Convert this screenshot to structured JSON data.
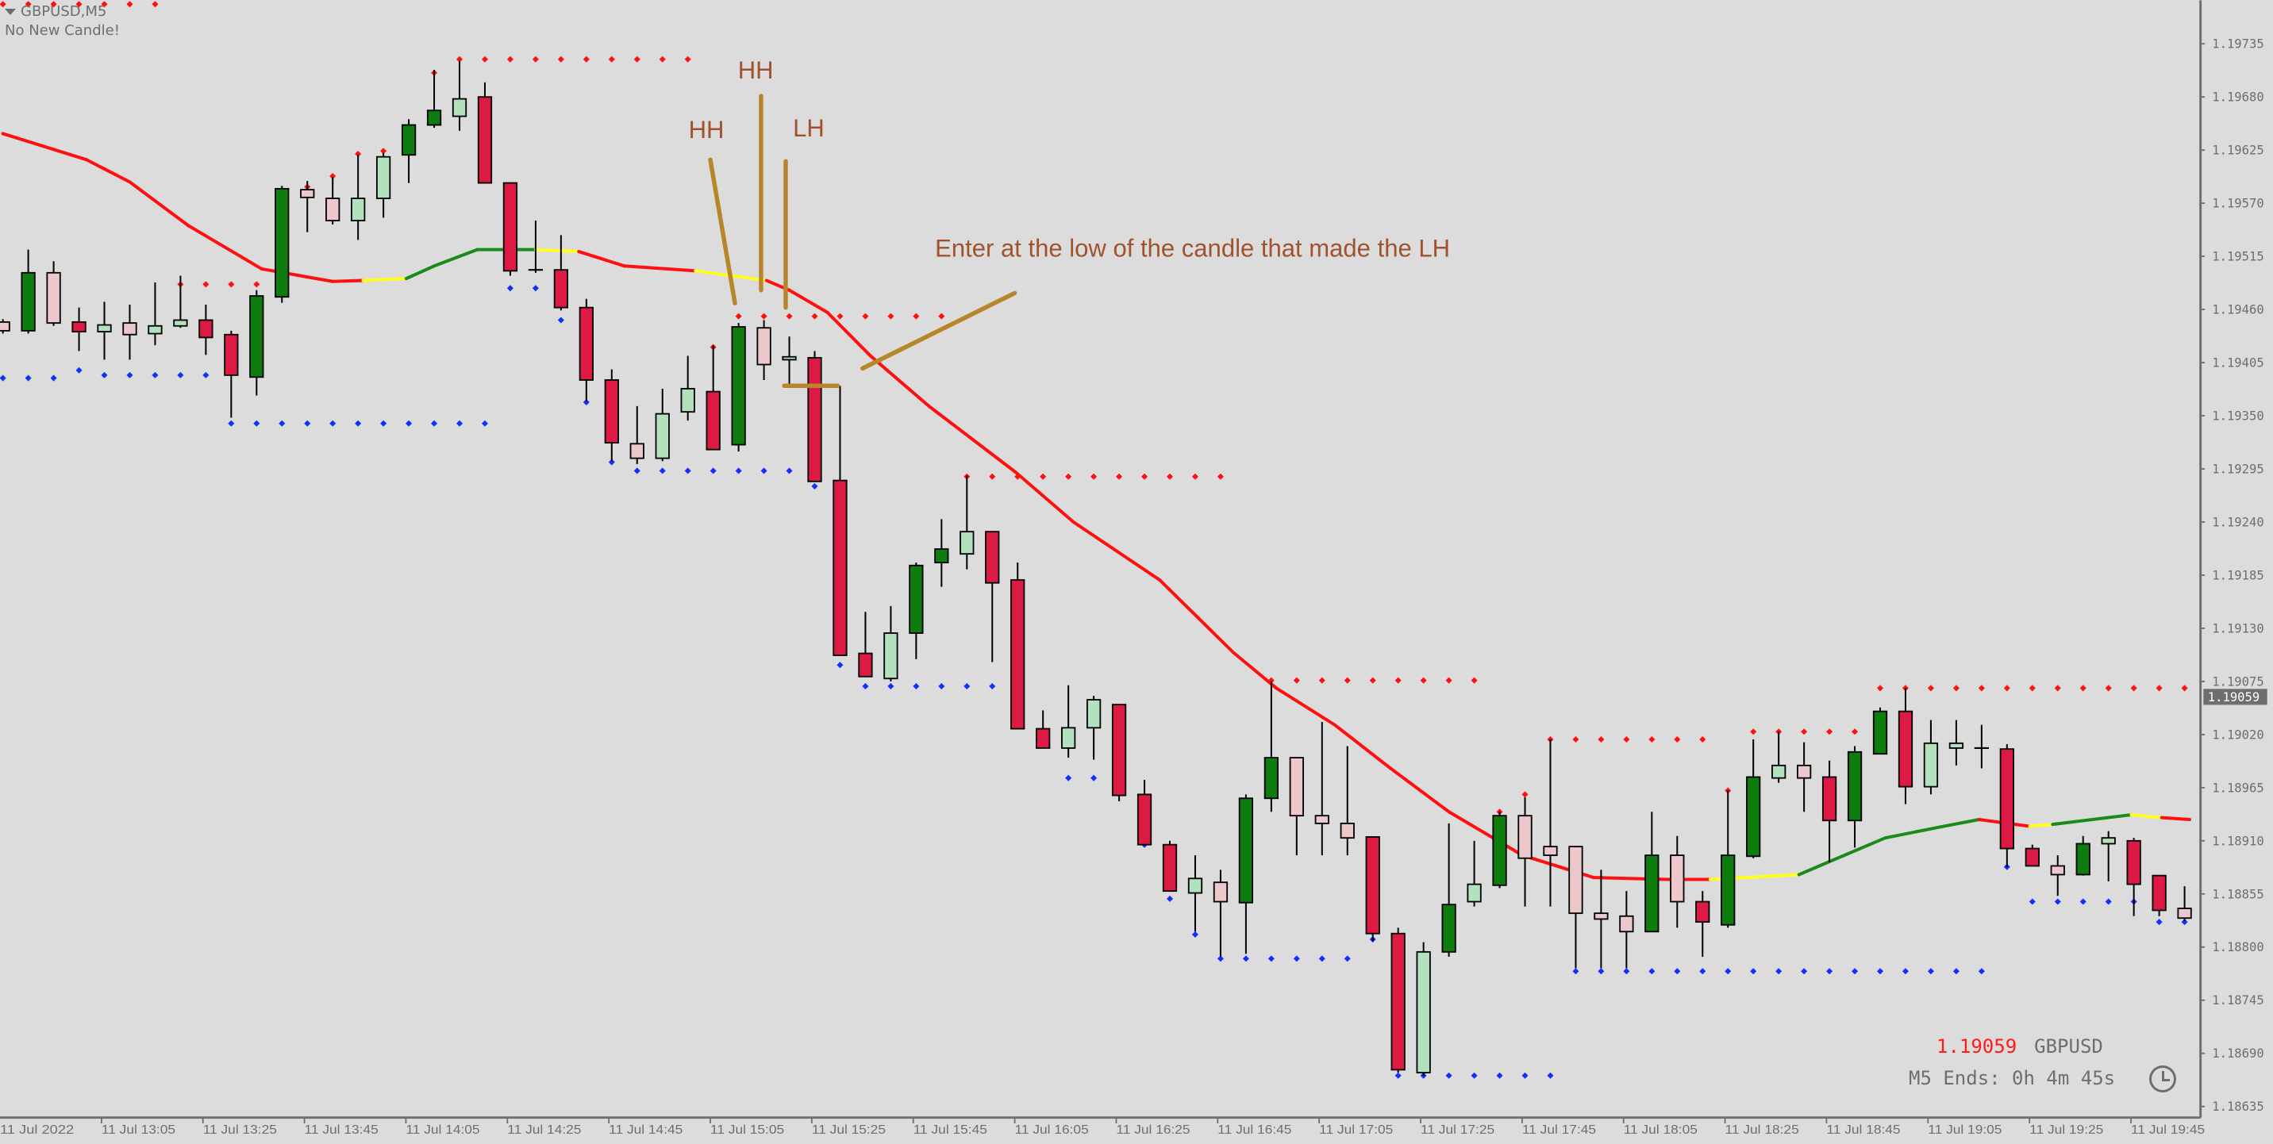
{
  "header": {
    "symbol_title": "GBPUSD,M5",
    "status_text": "No New Candle!"
  },
  "info_panel": {
    "price": "1.19059",
    "symbol": "GBPUSD",
    "timer": "M5 Ends: 0h 4m 45s",
    "clock_icon": "clock-icon"
  },
  "colors": {
    "background": "#dcdcdc",
    "axis": "#6e6e6e",
    "bull": "#0e7c0e",
    "bull_light": "#b2e2bd",
    "bear": "#dc1a44",
    "bear_light": "#ecc8cc",
    "resistance_dots": "#ff1010",
    "support_dots": "#1030ff",
    "ma_red": "#ff1010",
    "ma_green": "#1a8a1a",
    "ma_yellow": "#ffff20",
    "annotation_text": "#a0522d",
    "annotation_line": "#b8862a"
  },
  "annotations": {
    "hh_1": "HH",
    "hh_2": "HH",
    "lh": "LH",
    "entry_note": "Enter at the low of the candle that made the LH"
  },
  "chart_data": {
    "type": "candlestick",
    "symbol": "GBPUSD",
    "timeframe": "M5",
    "ylim": [
      1.18635,
      1.1978
    ],
    "current_price": 1.19059,
    "y_ticks": [
      "1.19735",
      "1.19680",
      "1.19625",
      "1.19570",
      "1.19515",
      "1.19460",
      "1.19405",
      "1.19350",
      "1.19295",
      "1.19240",
      "1.19185",
      "1.19130",
      "1.19075",
      "1.19020",
      "1.18965",
      "1.18910",
      "1.18855",
      "1.18800",
      "1.18745",
      "1.18690",
      "1.18635"
    ],
    "x_ticks": [
      {
        "i": 0,
        "label": "11 Jul 2022"
      },
      {
        "i": 4,
        "label": "11 Jul 13:05"
      },
      {
        "i": 8,
        "label": "11 Jul 13:25"
      },
      {
        "i": 12,
        "label": "11 Jul 13:45"
      },
      {
        "i": 16,
        "label": "11 Jul 14:05"
      },
      {
        "i": 20,
        "label": "11 Jul 14:25"
      },
      {
        "i": 24,
        "label": "11 Jul 14:45"
      },
      {
        "i": 28,
        "label": "11 Jul 15:05"
      },
      {
        "i": 32,
        "label": "11 Jul 15:25"
      },
      {
        "i": 36,
        "label": "11 Jul 15:45"
      },
      {
        "i": 40,
        "label": "11 Jul 16:05"
      },
      {
        "i": 44,
        "label": "11 Jul 16:25"
      },
      {
        "i": 48,
        "label": "11 Jul 16:45"
      },
      {
        "i": 52,
        "label": "11 Jul 17:05"
      },
      {
        "i": 56,
        "label": "11 Jul 17:25"
      },
      {
        "i": 60,
        "label": "11 Jul 17:45"
      },
      {
        "i": 64,
        "label": "11 Jul 18:05"
      },
      {
        "i": 68,
        "label": "11 Jul 18:25"
      },
      {
        "i": 72,
        "label": "11 Jul 18:45"
      },
      {
        "i": 76,
        "label": "11 Jul 19:05"
      },
      {
        "i": 80,
        "label": "11 Jul 19:25"
      },
      {
        "i": 84,
        "label": "11 Jul 19:45"
      }
    ],
    "candle_fields": [
      "open",
      "high",
      "low",
      "close",
      "style"
    ],
    "candle_styles": {
      "G": "bull",
      "g": "bull_light",
      "R": "bear",
      "r": "bear_light",
      "d": "doji"
    },
    "candles": [
      [
        1.19447,
        1.1945,
        1.19435,
        1.19438,
        "r"
      ],
      [
        1.19438,
        1.19522,
        1.19435,
        1.19498,
        "G"
      ],
      [
        1.19498,
        1.1951,
        1.19443,
        1.19446,
        "r"
      ],
      [
        1.19447,
        1.19462,
        1.19417,
        1.19437,
        "R"
      ],
      [
        1.19437,
        1.19468,
        1.19408,
        1.19444,
        "g"
      ],
      [
        1.19446,
        1.19465,
        1.19408,
        1.19434,
        "r"
      ],
      [
        1.19435,
        1.19488,
        1.19423,
        1.19443,
        "g"
      ],
      [
        1.19443,
        1.19495,
        1.19441,
        1.19449,
        "g"
      ],
      [
        1.19449,
        1.19465,
        1.19413,
        1.19431,
        "R"
      ],
      [
        1.19434,
        1.19438,
        1.19348,
        1.19392,
        "R"
      ],
      [
        1.1939,
        1.1948,
        1.19371,
        1.19474,
        "G"
      ],
      [
        1.19473,
        1.19588,
        1.19467,
        1.19585,
        "G"
      ],
      [
        1.19584,
        1.19593,
        1.1954,
        1.19576,
        "r"
      ],
      [
        1.19575,
        1.19597,
        1.19548,
        1.19552,
        "r"
      ],
      [
        1.19552,
        1.1962,
        1.19532,
        1.19575,
        "g"
      ],
      [
        1.19575,
        1.19622,
        1.19555,
        1.19618,
        "g"
      ],
      [
        1.1962,
        1.19657,
        1.19591,
        1.19651,
        "G"
      ],
      [
        1.19651,
        1.19708,
        1.19648,
        1.19666,
        "G"
      ],
      [
        1.1966,
        1.19717,
        1.19645,
        1.19678,
        "g"
      ],
      [
        1.1968,
        1.19695,
        1.19591,
        1.19591,
        "R"
      ],
      [
        1.19591,
        1.19591,
        1.19495,
        1.195,
        "R"
      ],
      [
        1.19501,
        1.19552,
        1.19498,
        1.195,
        "d"
      ],
      [
        1.19501,
        1.19537,
        1.19459,
        1.19462,
        "R"
      ],
      [
        1.19462,
        1.19471,
        1.19365,
        1.19387,
        "R"
      ],
      [
        1.19387,
        1.19398,
        1.19303,
        1.19322,
        "R"
      ],
      [
        1.19321,
        1.1936,
        1.193,
        1.19306,
        "r"
      ],
      [
        1.19306,
        1.19378,
        1.19303,
        1.19352,
        "g"
      ],
      [
        1.19354,
        1.19412,
        1.19345,
        1.19378,
        "g"
      ],
      [
        1.19375,
        1.19423,
        1.19315,
        1.19315,
        "R"
      ],
      [
        1.1932,
        1.19446,
        1.19313,
        1.19442,
        "G"
      ],
      [
        1.19441,
        1.19449,
        1.19387,
        1.19403,
        "r"
      ],
      [
        1.19408,
        1.19432,
        1.19382,
        1.19411,
        "g"
      ],
      [
        1.1941,
        1.19417,
        1.19282,
        1.19282,
        "R"
      ],
      [
        1.19283,
        1.19381,
        1.19102,
        1.19102,
        "R"
      ],
      [
        1.19104,
        1.19147,
        1.1908,
        1.1908,
        "R"
      ],
      [
        1.19078,
        1.19153,
        1.19075,
        1.19125,
        "g"
      ],
      [
        1.19125,
        1.19198,
        1.19098,
        1.19195,
        "G"
      ],
      [
        1.19198,
        1.19243,
        1.19173,
        1.19212,
        "G"
      ],
      [
        1.19207,
        1.19288,
        1.19191,
        1.1923,
        "g"
      ],
      [
        1.1923,
        1.1923,
        1.19095,
        1.19177,
        "R"
      ],
      [
        1.1918,
        1.19198,
        1.19026,
        1.19026,
        "R"
      ],
      [
        1.19026,
        1.19045,
        1.19006,
        1.19006,
        "R"
      ],
      [
        1.19006,
        1.19071,
        1.18996,
        1.19027,
        "g"
      ],
      [
        1.19027,
        1.1906,
        1.18994,
        1.19056,
        "g"
      ],
      [
        1.19051,
        1.19051,
        1.18951,
        1.18957,
        "R"
      ],
      [
        1.18958,
        1.18973,
        1.18906,
        1.18906,
        "R"
      ],
      [
        1.18906,
        1.1891,
        1.18858,
        1.18858,
        "R"
      ],
      [
        1.18856,
        1.18895,
        1.18816,
        1.18871,
        "g"
      ],
      [
        1.18867,
        1.1888,
        1.1879,
        1.18847,
        "r"
      ],
      [
        1.18846,
        1.18958,
        1.18793,
        1.18954,
        "G"
      ],
      [
        1.18954,
        1.19075,
        1.1894,
        1.18996,
        "G"
      ],
      [
        1.18996,
        1.18996,
        1.18895,
        1.18936,
        "r"
      ],
      [
        1.18936,
        1.19033,
        1.18895,
        1.18928,
        "r"
      ],
      [
        1.18928,
        1.19008,
        1.18895,
        1.18913,
        "r"
      ],
      [
        1.18914,
        1.18914,
        1.18806,
        1.18814,
        "R"
      ],
      [
        1.18814,
        1.1882,
        1.1867,
        1.18673,
        "R"
      ],
      [
        1.1867,
        1.18805,
        1.18667,
        1.18795,
        "g"
      ],
      [
        1.18795,
        1.18928,
        1.1879,
        1.18844,
        "G"
      ],
      [
        1.18847,
        1.1891,
        1.18842,
        1.18865,
        "g"
      ],
      [
        1.18864,
        1.1894,
        1.18861,
        1.18936,
        "G"
      ],
      [
        1.18936,
        1.18955,
        1.18842,
        1.18892,
        "r"
      ],
      [
        1.18904,
        1.19015,
        1.18842,
        1.18895,
        "r"
      ],
      [
        1.18904,
        1.18904,
        1.18778,
        1.18835,
        "r"
      ],
      [
        1.18835,
        1.1888,
        1.18778,
        1.18829,
        "r"
      ],
      [
        1.18832,
        1.18858,
        1.18778,
        1.18816,
        "r"
      ],
      [
        1.18816,
        1.1894,
        1.18816,
        1.18895,
        "G"
      ],
      [
        1.18895,
        1.18915,
        1.1882,
        1.18847,
        "r"
      ],
      [
        1.18847,
        1.18858,
        1.1879,
        1.18826,
        "R"
      ],
      [
        1.18823,
        1.18962,
        1.1882,
        1.18895,
        "G"
      ],
      [
        1.18894,
        1.19015,
        1.18892,
        1.18976,
        "G"
      ],
      [
        1.18975,
        1.19023,
        1.1897,
        1.18988,
        "g"
      ],
      [
        1.18988,
        1.19012,
        1.1894,
        1.18975,
        "r"
      ],
      [
        1.18976,
        1.18993,
        1.18888,
        1.18931,
        "R"
      ],
      [
        1.18931,
        1.19008,
        1.18903,
        1.19002,
        "G"
      ],
      [
        1.19,
        1.19048,
        1.19,
        1.19044,
        "G"
      ],
      [
        1.19044,
        1.19068,
        1.18948,
        1.18966,
        "R"
      ],
      [
        1.18966,
        1.19035,
        1.18958,
        1.19011,
        "g"
      ],
      [
        1.19006,
        1.19035,
        1.18988,
        1.19011,
        "g"
      ],
      [
        1.19006,
        1.1903,
        1.18985,
        1.19005,
        "d"
      ],
      [
        1.19005,
        1.1901,
        1.18883,
        1.18902,
        "R"
      ],
      [
        1.18902,
        1.18906,
        1.18884,
        1.18884,
        "R"
      ],
      [
        1.18884,
        1.18895,
        1.18853,
        1.18875,
        "r"
      ],
      [
        1.18875,
        1.18915,
        1.18874,
        1.18907,
        "G"
      ],
      [
        1.18907,
        1.1892,
        1.18868,
        1.18913,
        "g"
      ],
      [
        1.1891,
        1.18913,
        1.18832,
        1.18865,
        "R"
      ],
      [
        1.18874,
        1.18874,
        1.18832,
        1.18838,
        "R"
      ],
      [
        1.1884,
        1.18863,
        1.18827,
        1.1883,
        "r"
      ]
    ],
    "resistance_levels": [
      [
        1.19776,
        0,
        6
      ],
      [
        1.19486,
        7,
        10
      ],
      [
        1.19581,
        11,
        11
      ],
      [
        1.19587,
        12,
        12
      ],
      [
        1.19598,
        13,
        13
      ],
      [
        1.19621,
        14,
        14
      ],
      [
        1.19624,
        15,
        15
      ],
      [
        1.19649,
        16,
        16
      ],
      [
        1.19705,
        17,
        17
      ],
      [
        1.19719,
        18,
        27
      ],
      [
        1.19421,
        28,
        28
      ],
      [
        1.19453,
        29,
        37
      ],
      [
        1.19287,
        38,
        48
      ],
      [
        1.19076,
        50,
        58
      ],
      [
        1.1894,
        59,
        59
      ],
      [
        1.18958,
        60,
        60
      ],
      [
        1.19015,
        61,
        67
      ],
      [
        1.18962,
        68,
        68
      ],
      [
        1.19023,
        69,
        73
      ],
      [
        1.19068,
        74,
        86
      ]
    ],
    "support_levels": [
      [
        1.19389,
        0,
        2
      ],
      [
        1.19397,
        3,
        3
      ],
      [
        1.19392,
        4,
        8
      ],
      [
        1.19342,
        9,
        19
      ],
      [
        1.19482,
        20,
        21
      ],
      [
        1.19449,
        22,
        22
      ],
      [
        1.19364,
        23,
        23
      ],
      [
        1.19302,
        24,
        24
      ],
      [
        1.19293,
        25,
        31
      ],
      [
        1.19277,
        32,
        32
      ],
      [
        1.19092,
        33,
        33
      ],
      [
        1.1907,
        34,
        39
      ],
      [
        1.18975,
        42,
        44
      ],
      [
        1.18906,
        45,
        45
      ],
      [
        1.1885,
        46,
        46
      ],
      [
        1.18813,
        47,
        47
      ],
      [
        1.18788,
        48,
        53
      ],
      [
        1.18808,
        54,
        54
      ],
      [
        1.18667,
        55,
        61
      ],
      [
        1.18775,
        62,
        78
      ],
      [
        1.18883,
        79,
        79
      ],
      [
        1.18847,
        80,
        84
      ],
      [
        1.18826,
        85,
        86
      ]
    ],
    "moving_average": [
      [
        0,
        1.19642,
        "red"
      ],
      [
        3.3,
        1.19615,
        "red"
      ],
      [
        5,
        1.19592,
        "red"
      ],
      [
        7.3,
        1.19547,
        "red"
      ],
      [
        10.2,
        1.19502,
        "red"
      ],
      [
        13,
        1.19489,
        "red"
      ],
      [
        14.2,
        1.1949,
        "yellow"
      ],
      [
        15.9,
        1.19492,
        "green"
      ],
      [
        17,
        1.19505,
        "green"
      ],
      [
        18.7,
        1.19522,
        "green"
      ],
      [
        21,
        1.19522,
        "yellow"
      ],
      [
        22.7,
        1.1952,
        "red"
      ],
      [
        24.5,
        1.19505,
        "red"
      ],
      [
        27.3,
        1.195,
        "yellow"
      ],
      [
        28.7,
        1.19495,
        "yellow"
      ],
      [
        30.1,
        1.1949,
        "red"
      ],
      [
        31,
        1.1948,
        "red"
      ],
      [
        32.5,
        1.19457,
        "red"
      ],
      [
        34.2,
        1.19412,
        "red"
      ],
      [
        36.5,
        1.1936,
        "red"
      ],
      [
        39.9,
        1.19292,
        "red"
      ],
      [
        42.2,
        1.1924,
        "red"
      ],
      [
        45.6,
        1.1918,
        "red"
      ],
      [
        48.5,
        1.19105,
        "red"
      ],
      [
        50.2,
        1.19068,
        "red"
      ],
      [
        52.5,
        1.1903,
        "red"
      ],
      [
        54.7,
        1.18985,
        "red"
      ],
      [
        57,
        1.1894,
        "red"
      ],
      [
        59.9,
        1.18895,
        "red"
      ],
      [
        62.7,
        1.18872,
        "red"
      ],
      [
        65.6,
        1.1887,
        "red"
      ],
      [
        67.3,
        1.1887,
        "yellow"
      ],
      [
        70.8,
        1.18875,
        "green"
      ],
      [
        74.2,
        1.18913,
        "green"
      ],
      [
        76.5,
        1.18925,
        "green"
      ],
      [
        77.9,
        1.18932,
        "red"
      ],
      [
        79.9,
        1.18925,
        "yellow"
      ],
      [
        80.8,
        1.18927,
        "green"
      ],
      [
        83.9,
        1.18937,
        "yellow"
      ],
      [
        85.1,
        1.18934,
        "red"
      ],
      [
        86.2,
        1.18932,
        "red"
      ]
    ]
  }
}
